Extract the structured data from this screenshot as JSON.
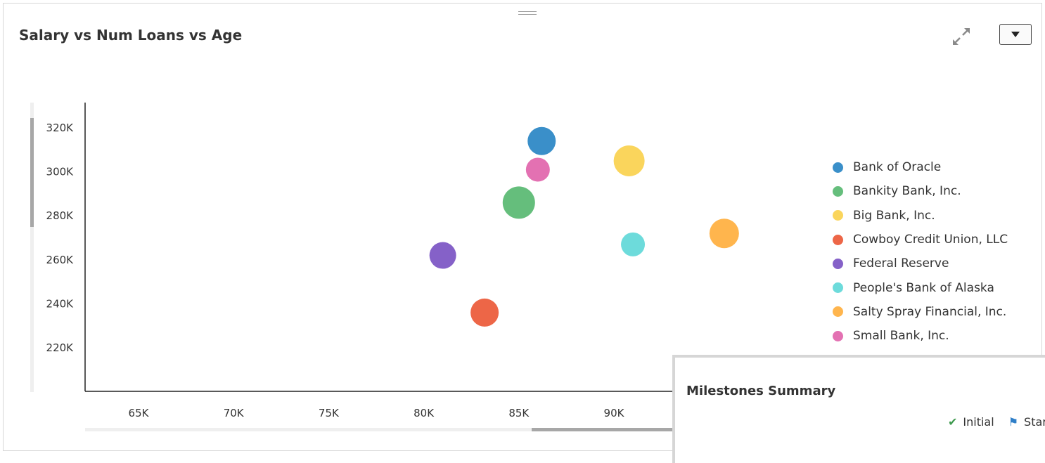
{
  "panel": {
    "title": "Salary vs Num Loans vs Age",
    "icons": {
      "expand": "expand-icon",
      "menu": "dropdown-arrow-icon"
    }
  },
  "chart_data": {
    "type": "scatter",
    "title": "Salary vs Num Loans vs Age",
    "xlabel": "",
    "ylabel": "",
    "xlim": [
      62000,
      96000
    ],
    "ylim": [
      200000,
      332000
    ],
    "x_ticks": [
      "65K",
      "70K",
      "75K",
      "80K",
      "85K",
      "90K"
    ],
    "x_tick_values": [
      65000,
      70000,
      75000,
      80000,
      85000,
      90000
    ],
    "y_ticks": [
      "320K",
      "300K",
      "280K",
      "260K",
      "240K",
      "220K"
    ],
    "y_tick_values": [
      320000,
      300000,
      280000,
      260000,
      240000,
      220000
    ],
    "legend_position": "right",
    "series": [
      {
        "name": "Bank of Oracle",
        "color": "#3a8fc9",
        "x": 86200,
        "y": 314000,
        "size": 1.0
      },
      {
        "name": "Bankity Bank, Inc.",
        "color": "#65be7c",
        "x": 85000,
        "y": 286000,
        "size": 1.15
      },
      {
        "name": "Big Bank, Inc.",
        "color": "#fad55c",
        "x": 90800,
        "y": 305000,
        "size": 1.1
      },
      {
        "name": "Cowboy Credit Union, LLC",
        "color": "#ed6647",
        "x": 83200,
        "y": 236000,
        "size": 1.0
      },
      {
        "name": "Federal Reserve",
        "color": "#8561c8",
        "x": 81000,
        "y": 262000,
        "size": 0.95
      },
      {
        "name": "People's Bank of Alaska",
        "color": "#6ddbdb",
        "x": 91000,
        "y": 267000,
        "size": 0.85
      },
      {
        "name": "Salty Spray Financial, Inc.",
        "color": "#ffb54d",
        "x": 95800,
        "y": 272000,
        "size": 1.05
      },
      {
        "name": "Small Bank, Inc.",
        "color": "#e371b2",
        "x": 86000,
        "y": 301000,
        "size": 0.85
      }
    ]
  },
  "milestones": {
    "title": "Milestones Summary",
    "legend": [
      {
        "label": "Initial",
        "icon": "check-icon",
        "color": "#3f9a4f"
      },
      {
        "label": "Star",
        "icon": "flag-icon",
        "color": "#2f7fc8"
      }
    ]
  }
}
